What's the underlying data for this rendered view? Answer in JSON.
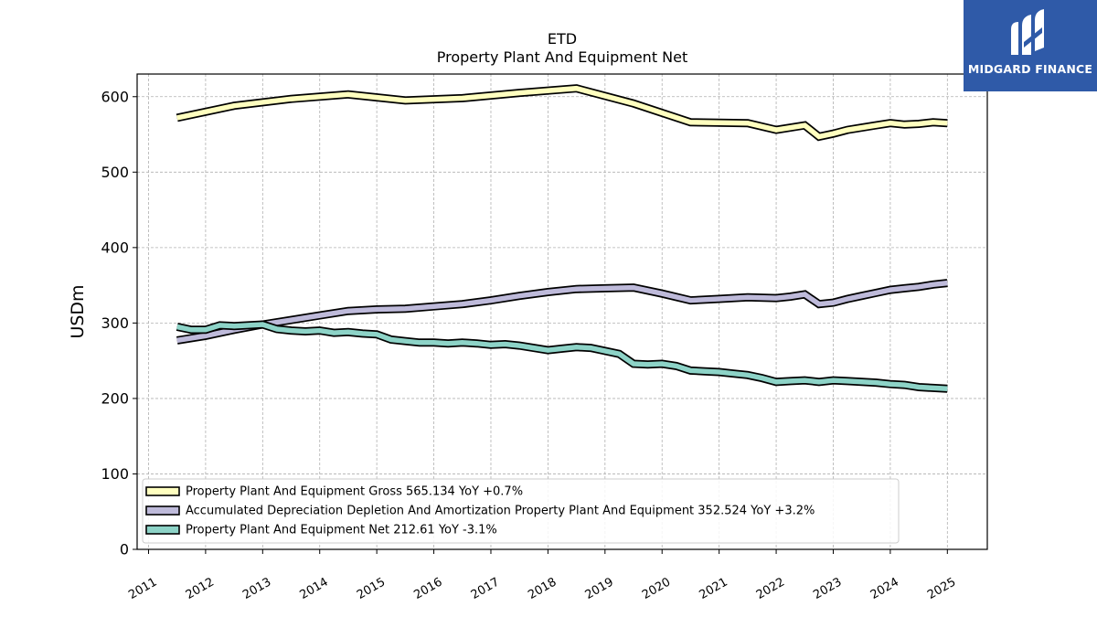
{
  "chart_data": {
    "type": "line",
    "title": "ETD",
    "subtitle": "Property Plant And Equipment Net",
    "xlabel": "",
    "ylabel": "USDm",
    "xlim": [
      2010.8,
      2025.7
    ],
    "ylim": [
      0,
      630
    ],
    "grid": true,
    "legend_position": "lower-left",
    "x_ticks": [
      "2011",
      "2012",
      "2013",
      "2014",
      "2015",
      "2016",
      "2017",
      "2018",
      "2019",
      "2020",
      "2021",
      "2022",
      "2023",
      "2024",
      "2025"
    ],
    "y_ticks": [
      "0",
      "100",
      "200",
      "300",
      "400",
      "500",
      "600"
    ],
    "series": [
      {
        "name": "Property Plant And Equipment Gross  565.134 YoY +0.7%",
        "color": "#ffffbf",
        "x": [
          2011.5,
          2012.5,
          2013.5,
          2014.5,
          2015.5,
          2016.5,
          2017.5,
          2018.5,
          2019.5,
          2020.5,
          2021.5,
          2022.0,
          2022.5,
          2022.75,
          2023.0,
          2023.25,
          2023.5,
          2023.75,
          2024.0,
          2024.25,
          2024.5,
          2024.75,
          2025.0
        ],
        "values": [
          572,
          588,
          597,
          603,
          595,
          598,
          605,
          611,
          591,
          566,
          565,
          556,
          562,
          547,
          551,
          556,
          559,
          562,
          565,
          563,
          564,
          566,
          565
        ]
      },
      {
        "name": "Accumulated Depreciation Depletion And Amortization Property Plant And Equipment  352.524 YoY +3.2%",
        "color": "#bebada",
        "x": [
          2011.5,
          2012.0,
          2012.5,
          2013.0,
          2013.5,
          2014.0,
          2014.5,
          2015.0,
          2015.5,
          2016.0,
          2016.5,
          2017.0,
          2017.5,
          2018.0,
          2018.5,
          2019.0,
          2019.5,
          2020.0,
          2020.5,
          2021.0,
          2021.5,
          2022.0,
          2022.25,
          2022.5,
          2022.75,
          2023.0,
          2023.25,
          2023.5,
          2023.75,
          2024.0,
          2024.25,
          2024.5,
          2024.75,
          2025.0
        ],
        "values": [
          277,
          283,
          291,
          298,
          304,
          310,
          316,
          318,
          319,
          322,
          325,
          330,
          336,
          341,
          345,
          346,
          347,
          339,
          330,
          332,
          334,
          333,
          335,
          338,
          325,
          327,
          332,
          336,
          340,
          344,
          346,
          348,
          351,
          353
        ]
      },
      {
        "name": "Property Plant And Equipment Net  212.61 YoY -3.1%",
        "color": "#8dd3c7",
        "x": [
          2011.5,
          2011.75,
          2012.0,
          2012.25,
          2012.5,
          2012.75,
          2013.0,
          2013.25,
          2013.5,
          2013.75,
          2014.0,
          2014.25,
          2014.5,
          2014.75,
          2015.0,
          2015.25,
          2015.5,
          2015.75,
          2016.0,
          2016.25,
          2016.5,
          2016.75,
          2017.0,
          2017.25,
          2017.5,
          2017.75,
          2018.0,
          2018.25,
          2018.5,
          2018.75,
          2019.0,
          2019.25,
          2019.5,
          2019.75,
          2020.0,
          2020.25,
          2020.5,
          2020.75,
          2021.0,
          2021.25,
          2021.5,
          2021.75,
          2022.0,
          2022.25,
          2022.5,
          2022.75,
          2023.0,
          2023.25,
          2023.5,
          2023.75,
          2024.0,
          2024.25,
          2024.5,
          2024.75,
          2025.0
        ],
        "values": [
          295,
          291,
          291,
          297,
          296,
          297,
          298,
          292,
          290,
          289,
          290,
          287,
          288,
          286,
          285,
          278,
          276,
          274,
          274,
          273,
          274,
          273,
          271,
          272,
          270,
          267,
          264,
          266,
          268,
          267,
          263,
          259,
          246,
          245,
          246,
          243,
          237,
          236,
          235,
          233,
          231,
          227,
          222,
          223,
          224,
          222,
          224,
          223,
          222,
          221,
          219,
          218,
          215,
          214,
          213
        ]
      }
    ]
  },
  "logo": {
    "text": "MIDGARD FINANCE"
  }
}
